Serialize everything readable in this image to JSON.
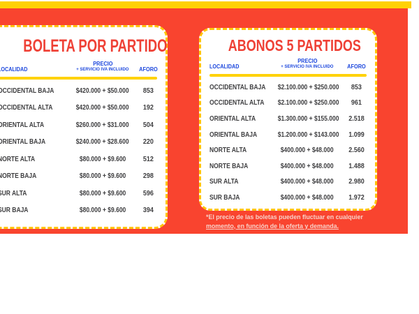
{
  "theme": {
    "background_red": "#F9442F",
    "accent_yellow": "#FFD205",
    "card_border_yellow": "#FFC408",
    "title_red": "#EF4136",
    "header_blue": "#1C47DD",
    "row_text": "#3E3E40",
    "disclaimer_text": "#F8D2C9"
  },
  "left_card": {
    "title": "BOLETA POR PARTIDO",
    "columns": {
      "localidad": "LOCALIDAD",
      "precio": "PRECIO",
      "precio_sub": "+ SERVICIO IVA INCLUIDO",
      "aforo": "AFORO"
    },
    "rows": [
      {
        "localidad": "OCCIDENTAL BAJA",
        "precio": "$420.000 + $50.000",
        "aforo": "853"
      },
      {
        "localidad": "OCCIDENTAL ALTA",
        "precio": "$420.000 + $50.000",
        "aforo": "192"
      },
      {
        "localidad": "ORIENTAL ALTA",
        "precio": "$260.000 + $31.000",
        "aforo": "504"
      },
      {
        "localidad": "ORIENTAL BAJA",
        "precio": "$240.000 + $28.600",
        "aforo": "220"
      },
      {
        "localidad": "NORTE ALTA",
        "precio": "$80.000 + $9.600",
        "aforo": "512"
      },
      {
        "localidad": "NORTE BAJA",
        "precio": "$80.000 + $9.600",
        "aforo": "298"
      },
      {
        "localidad": "SUR ALTA",
        "precio": "$80.000 + $9.600",
        "aforo": "596"
      },
      {
        "localidad": "SUR BAJA",
        "precio": "$80.000 + $9.600",
        "aforo": "394"
      }
    ]
  },
  "right_card": {
    "title": "ABONOS 5 PARTIDOS",
    "columns": {
      "localidad": "LOCALIDAD",
      "precio": "PRECIO",
      "precio_sub": "+ SERVICIO IVA INCLUIDO",
      "aforo": "AFORO"
    },
    "rows": [
      {
        "localidad": "OCCIDENTAL BAJA",
        "precio": "$2.100.000 + $250.000",
        "aforo": "853"
      },
      {
        "localidad": "OCCIDENTAL ALTA",
        "precio": "$2.100.000 + $250.000",
        "aforo": "961"
      },
      {
        "localidad": "ORIENTAL ALTA",
        "precio": "$1.300.000 + $155.000",
        "aforo": "2.518"
      },
      {
        "localidad": "ORIENTAL BAJA",
        "precio": "$1.200.000 + $143.000",
        "aforo": "1.099"
      },
      {
        "localidad": "NORTE ALTA",
        "precio": "$400.000 + $48.000",
        "aforo": "2.560"
      },
      {
        "localidad": "NORTE BAJA",
        "precio": "$400.000 + $48.000",
        "aforo": "1.488"
      },
      {
        "localidad": "SUR ALTA",
        "precio": "$400.000 + $48.000",
        "aforo": "2.980"
      },
      {
        "localidad": "SUR BAJA",
        "precio": "$400.000 + $48.000",
        "aforo": "1.972"
      }
    ]
  },
  "disclaimer": {
    "line1": "*El precio de las boletas pueden fluctuar en cualquier",
    "line2": "momento, en función de la oferta y demanda."
  }
}
